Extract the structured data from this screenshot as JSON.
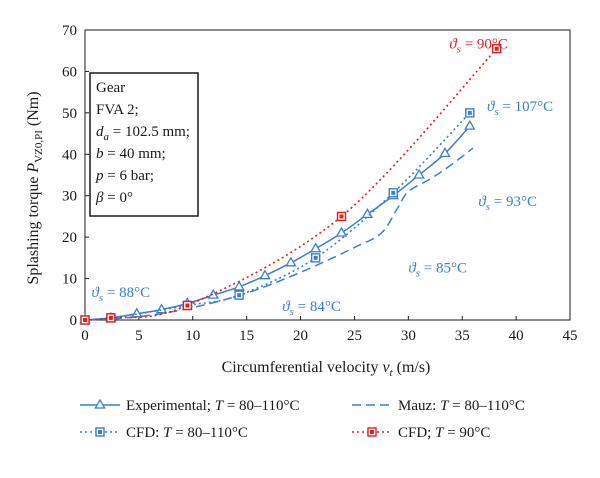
{
  "chart_data": {
    "type": "line",
    "title": "",
    "xlabel": "Circumferential velocity v_t (m/s)",
    "ylabel": "Splashing torque P_VZ0,PI (Nm)",
    "xlim": [
      0,
      45
    ],
    "ylim": [
      0,
      70
    ],
    "x_ticks": [
      "0",
      "5",
      "10",
      "15",
      "20",
      "25",
      "30",
      "35",
      "40",
      "45"
    ],
    "y_ticks": [
      "0",
      "10",
      "20",
      "30",
      "40",
      "50",
      "60",
      "70"
    ],
    "grid": false,
    "series": [
      {
        "name": "Experimental; T = 80–110°C",
        "color": "#3a7fd0",
        "style": "solid",
        "marker": "triangle",
        "x": [
          0,
          2.4,
          4.8,
          7.1,
          9.5,
          11.9,
          14.3,
          16.7,
          19.1,
          21.4,
          23.8,
          26.2,
          28.6,
          31.0,
          33.4,
          35.7
        ],
        "y": [
          0,
          0.5,
          1.5,
          2.5,
          4.0,
          6.0,
          8.0,
          10.7,
          13.8,
          17.2,
          21.0,
          25.5,
          30.0,
          35.0,
          40.2,
          46.8
        ]
      },
      {
        "name": "Mauz: T = 80–110°C",
        "color": "#3a7fd0",
        "style": "dashed",
        "marker": "none",
        "x": [
          0,
          5,
          10,
          15,
          20,
          25,
          27.5,
          29,
          30,
          32,
          34,
          36
        ],
        "y": [
          0,
          0.8,
          3.0,
          6.5,
          11.5,
          17.5,
          21.0,
          27.0,
          31.0,
          34.0,
          37.5,
          41.5
        ]
      },
      {
        "name": "CFD: T = 80–110°C",
        "color": "#3a7fd0",
        "style": "dotted",
        "marker": "square",
        "x": [
          0,
          2.4,
          9.5,
          14.3,
          21.4,
          28.6,
          35.7
        ],
        "y": [
          0,
          0.5,
          3.5,
          6.0,
          15.0,
          30.7,
          50.0
        ]
      },
      {
        "name": "CFD; T = 90°C",
        "color": "#e02020",
        "style": "dotted",
        "marker": "square",
        "x": [
          0,
          2.4,
          9.5,
          23.8,
          38.2
        ],
        "y": [
          0,
          0.5,
          3.5,
          25.0,
          65.5
        ]
      }
    ],
    "annotations": [
      {
        "text": "ϑs = 88°C",
        "color": "#3a7fd0",
        "x": 0.6,
        "y": 5.6
      },
      {
        "text": "ϑs = 84°C",
        "color": "#3a7fd0",
        "x": 18.3,
        "y": 2.2
      },
      {
        "text": "ϑs = 85°C",
        "color": "#3a7fd0",
        "x": 30.0,
        "y": 11.5
      },
      {
        "text": "ϑs = 93°C",
        "color": "#3a7fd0",
        "x": 36.5,
        "y": 27.5
      },
      {
        "text": "ϑs = 107°C",
        "color": "#3a7fd0",
        "x": 37.3,
        "y": 50.5
      },
      {
        "text": "ϑs = 90°C",
        "color": "#e02020",
        "x": 33.8,
        "y": 65.5
      }
    ],
    "info_box": [
      "Gear",
      "FVA 2;",
      "d_a = 102.5 mm;",
      "b = 40 mm;",
      "p = 6 bar;",
      "β = 0°"
    ],
    "legend_position": "bottom"
  }
}
